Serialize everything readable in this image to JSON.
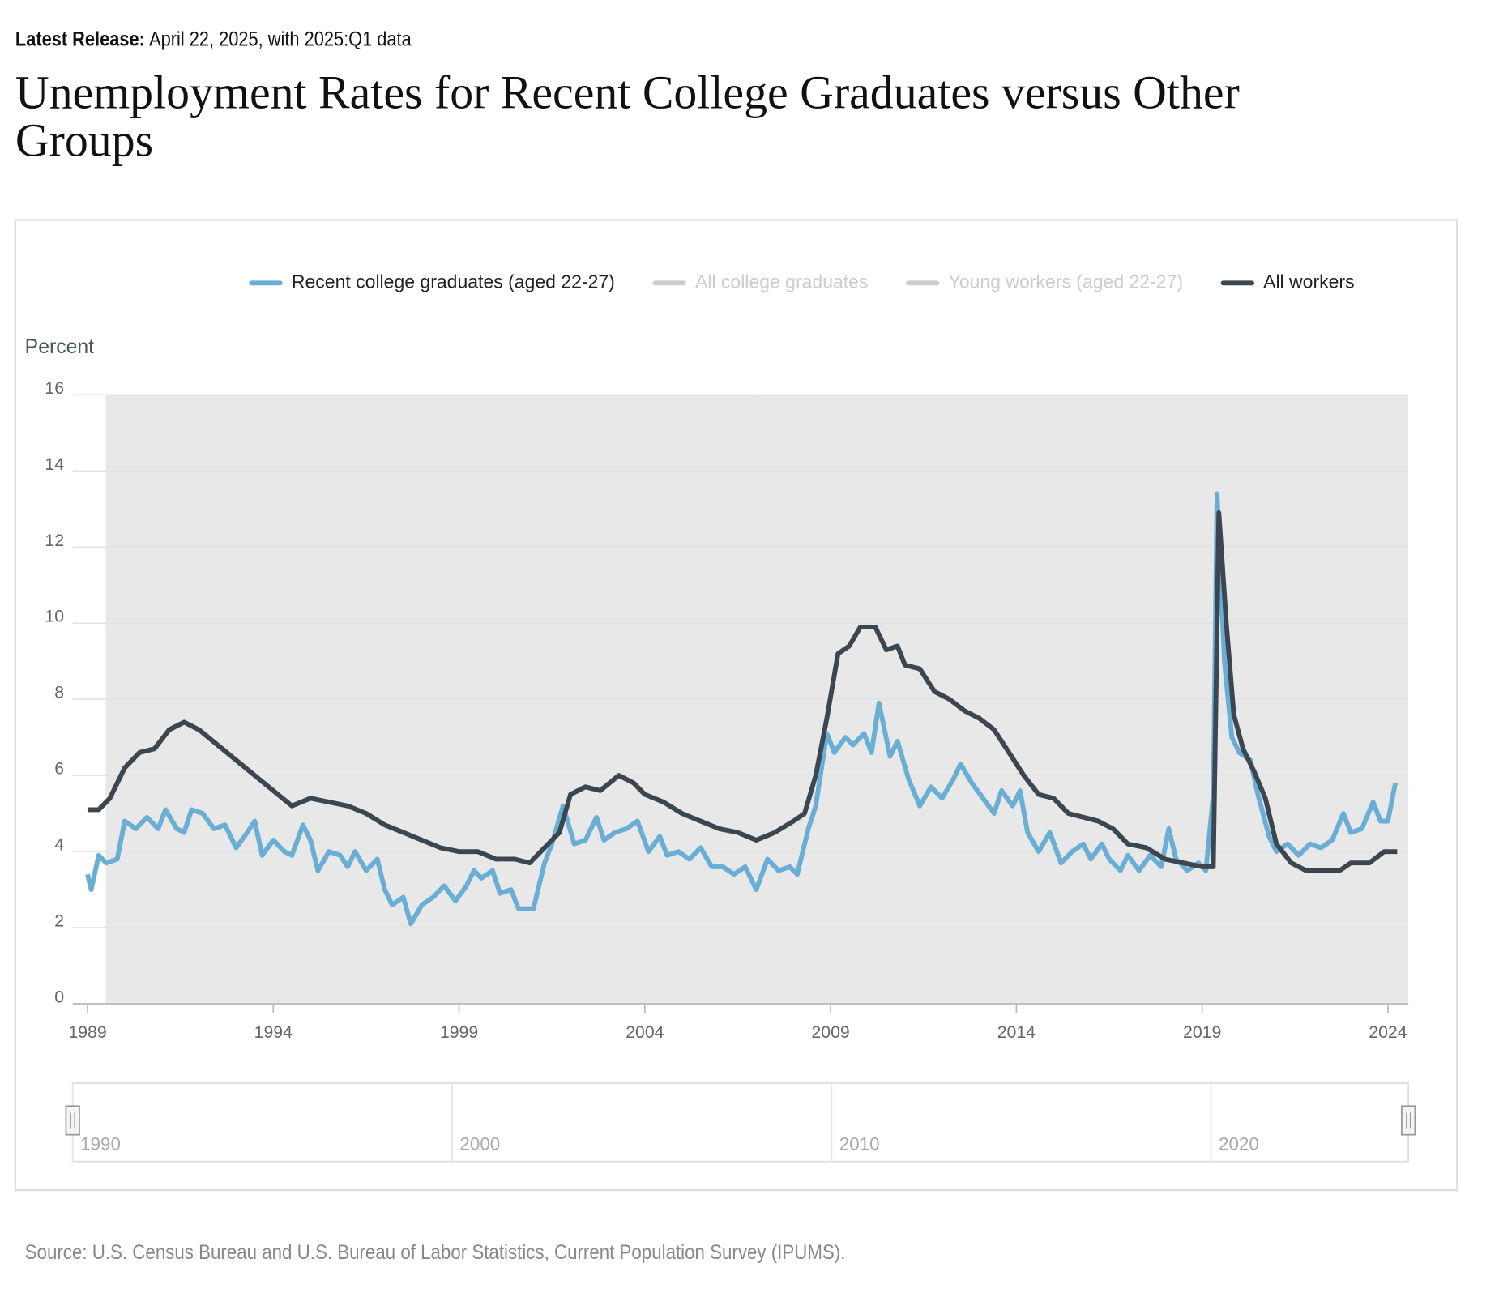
{
  "release_label": "Latest Release:",
  "release_text": "April 22, 2025, with 2025:Q1 data",
  "chart_data": {
    "type": "line",
    "title": "Unemployment Rates for Recent College Graduates versus Other Groups",
    "y_label": "Percent",
    "source": "Source: U.S. Census Bureau and U.S. Bureau of Labor Statistics, Current Population Survey (IPUMS).",
    "xlim": [
      1988.6,
      2024.55
    ],
    "xticks": [
      1989,
      1994,
      1999,
      2004,
      2009,
      2014,
      2019,
      2024
    ],
    "ylim": [
      0,
      16
    ],
    "yticks": [
      0,
      2,
      4,
      6,
      8,
      10,
      12,
      14,
      16
    ],
    "grid": true,
    "shaded_ranges": [
      [
        1989.49,
        2090.11
      ],
      [
        2000.16,
        2000.77
      ],
      [
        2006.92,
        2008.38
      ],
      [
        2019.13,
        2019.26
      ]
    ],
    "navigator": {
      "xlim": [
        1990,
        2025.2
      ],
      "xticks": [
        1990,
        2000,
        2010,
        2020
      ]
    },
    "series": [
      {
        "name": "Recent college graduates (aged 22-27)",
        "color": "#6aaed6",
        "x": [
          1989.0,
          1989.1,
          1989.3,
          1989.5,
          1989.8,
          1990.0,
          1990.3,
          1990.6,
          1990.9,
          1991.1,
          1991.4,
          1991.6,
          1991.8,
          1992.1,
          1992.4,
          1992.7,
          1993.0,
          1993.3,
          1993.5,
          1993.7,
          1994.0,
          1994.3,
          1994.5,
          1994.8,
          1995.0,
          1995.2,
          1995.5,
          1995.8,
          1996.0,
          1996.2,
          1996.5,
          1996.8,
          1997.0,
          1997.2,
          1997.5,
          1997.7,
          1998.0,
          1998.3,
          1998.6,
          1998.9,
          1999.2,
          1999.4,
          1999.6,
          1999.9,
          2000.1,
          2000.4,
          2000.6,
          2001.0,
          2001.3,
          2001.5,
          2001.8,
          2002.1,
          2002.4,
          2002.7,
          2002.9,
          2003.2,
          2003.5,
          2003.8,
          2004.1,
          2004.4,
          2004.6,
          2004.9,
          2005.2,
          2005.5,
          2005.8,
          2006.1,
          2006.4,
          2006.7,
          2007.0,
          2007.3,
          2007.6,
          2007.9,
          2008.1,
          2008.4,
          2008.6,
          2008.9,
          2009.1,
          2009.4,
          2009.6,
          2009.9,
          2010.1,
          2010.3,
          2010.6,
          2010.8,
          2011.1,
          2011.4,
          2011.7,
          2012.0,
          2012.3,
          2012.5,
          2012.8,
          2013.1,
          2013.4,
          2013.6,
          2013.9,
          2014.1,
          2014.3,
          2014.6,
          2014.9,
          2015.2,
          2015.5,
          2015.8,
          2016.0,
          2016.3,
          2016.5,
          2016.8,
          2017.0,
          2017.3,
          2017.6,
          2017.9,
          2018.1,
          2018.3,
          2018.6,
          2018.9,
          2019.1,
          2019.3,
          2019.4,
          2019.6,
          2019.8,
          2020.0,
          2020.3,
          2020.5,
          2020.8,
          2021.0,
          2021.3,
          2021.6,
          2021.9,
          2022.2,
          2022.5,
          2022.8,
          2023.0,
          2023.3,
          2023.6,
          2023.8,
          2024.0,
          2024.2
        ],
        "values": [
          3.4,
          3.0,
          3.9,
          3.7,
          3.8,
          4.8,
          4.6,
          4.9,
          4.6,
          5.1,
          4.6,
          4.5,
          5.1,
          5.0,
          4.6,
          4.7,
          4.1,
          4.5,
          4.8,
          3.9,
          4.3,
          4.0,
          3.9,
          4.7,
          4.3,
          3.5,
          4.0,
          3.9,
          3.6,
          4.0,
          3.5,
          3.8,
          3.0,
          2.6,
          2.8,
          2.1,
          2.6,
          2.8,
          3.1,
          2.7,
          3.1,
          3.5,
          3.3,
          3.5,
          2.9,
          3.0,
          2.5,
          2.5,
          3.7,
          4.2,
          5.2,
          4.2,
          4.3,
          4.9,
          4.3,
          4.5,
          4.6,
          4.8,
          4.0,
          4.4,
          3.9,
          4.0,
          3.8,
          4.1,
          3.6,
          3.6,
          3.4,
          3.6,
          3.0,
          3.8,
          3.5,
          3.6,
          3.4,
          4.6,
          5.2,
          7.1,
          6.6,
          7.0,
          6.8,
          7.1,
          6.6,
          7.9,
          6.5,
          6.9,
          5.9,
          5.2,
          5.7,
          5.4,
          5.9,
          6.3,
          5.8,
          5.4,
          5.0,
          5.6,
          5.2,
          5.6,
          4.5,
          4.0,
          4.5,
          3.7,
          4.0,
          4.2,
          3.8,
          4.2,
          3.8,
          3.5,
          3.9,
          3.5,
          3.9,
          3.6,
          4.6,
          3.8,
          3.5,
          3.7,
          3.5,
          5.5,
          13.4,
          9.0,
          7.0,
          6.6,
          6.4,
          5.5,
          4.4,
          4.0,
          4.2,
          3.9,
          4.2,
          4.1,
          4.3,
          5.0,
          4.5,
          4.6,
          5.3,
          4.8,
          4.8,
          5.8
        ]
      },
      {
        "name": "All college graduates",
        "color": "#cccccc",
        "hidden": true
      },
      {
        "name": "Young workers (aged 22-27)",
        "color": "#cccccc",
        "hidden": true
      },
      {
        "name": "All workers",
        "color": "#3b4650",
        "x": [
          1989.0,
          1989.3,
          1989.6,
          1990.0,
          1990.4,
          1990.8,
          1991.2,
          1991.6,
          1992.0,
          1992.5,
          1993.0,
          1993.5,
          1994.0,
          1994.5,
          1995.0,
          1995.5,
          1996.0,
          1996.5,
          1997.0,
          1997.5,
          1998.0,
          1998.5,
          1999.0,
          1999.5,
          2000.0,
          2000.5,
          2000.9,
          2001.3,
          2001.7,
          2002.0,
          2002.4,
          2002.8,
          2003.3,
          2003.7,
          2004.0,
          2004.5,
          2005.0,
          2005.5,
          2006.0,
          2006.5,
          2007.0,
          2007.5,
          2008.0,
          2008.3,
          2008.6,
          2008.9,
          2009.2,
          2009.5,
          2009.8,
          2010.2,
          2010.5,
          2010.8,
          2011.0,
          2011.4,
          2011.8,
          2012.2,
          2012.6,
          2013.0,
          2013.4,
          2013.8,
          2014.2,
          2014.6,
          2015.0,
          2015.4,
          2015.8,
          2016.2,
          2016.6,
          2017.0,
          2017.5,
          2018.0,
          2018.5,
          2019.0,
          2019.3,
          2019.45,
          2019.65,
          2019.85,
          2020.1,
          2020.4,
          2020.7,
          2021.0,
          2021.4,
          2021.8,
          2022.2,
          2022.7,
          2023.0,
          2023.5,
          2023.9,
          2024.25
        ],
        "values": [
          5.1,
          5.1,
          5.4,
          6.2,
          6.6,
          6.7,
          7.2,
          7.4,
          7.2,
          6.8,
          6.4,
          6.0,
          5.6,
          5.2,
          5.4,
          5.3,
          5.2,
          5.0,
          4.7,
          4.5,
          4.3,
          4.1,
          4.0,
          4.0,
          3.8,
          3.8,
          3.7,
          4.1,
          4.5,
          5.5,
          5.7,
          5.6,
          6.0,
          5.8,
          5.5,
          5.3,
          5.0,
          4.8,
          4.6,
          4.5,
          4.3,
          4.5,
          4.8,
          5.0,
          6.0,
          7.5,
          9.2,
          9.4,
          9.9,
          9.9,
          9.3,
          9.4,
          8.9,
          8.8,
          8.2,
          8.0,
          7.7,
          7.5,
          7.2,
          6.6,
          6.0,
          5.5,
          5.4,
          5.0,
          4.9,
          4.8,
          4.6,
          4.2,
          4.1,
          3.8,
          3.7,
          3.6,
          3.6,
          12.9,
          10.0,
          7.6,
          6.7,
          6.1,
          5.4,
          4.2,
          3.7,
          3.5,
          3.5,
          3.5,
          3.7,
          3.7,
          4.0,
          4.0
        ]
      }
    ]
  }
}
